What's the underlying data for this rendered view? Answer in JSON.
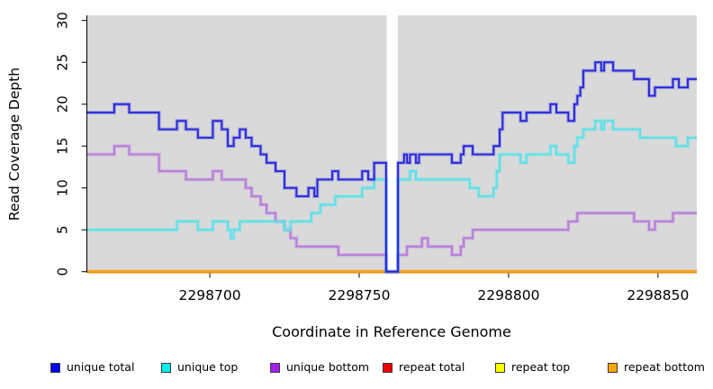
{
  "figure": {
    "y_axis": {
      "title": "Read Coverage Depth",
      "ticks": [
        0,
        5,
        10,
        15,
        20,
        25,
        30
      ]
    },
    "x_axis": {
      "title": "Coordinate in Reference Genome",
      "ticks": [
        2298700,
        2298750,
        2298800,
        2298850
      ]
    }
  },
  "chart_data": {
    "type": "line",
    "subtype": "step-coverage-plot",
    "title": "",
    "xlabel": "Coordinate in Reference Genome",
    "ylabel": "Read Coverage Depth",
    "xlim": [
      2298659,
      2298863
    ],
    "ylim": [
      0,
      30
    ],
    "x_ticks": [
      2298700,
      2298750,
      2298800,
      2298850
    ],
    "y_ticks": [
      0,
      5,
      10,
      15,
      20,
      25,
      30
    ],
    "grid": false,
    "panel_bg": "#d9d9d9",
    "no_data_gap": {
      "from": 2298759.2,
      "to": 2298762.9,
      "color": "#ffffff"
    },
    "legend_position": "bottom",
    "series": [
      {
        "name": "repeat total",
        "color": "#dd0000",
        "halo": "rgba(221,0,0,0.25)",
        "points": [
          [
            2298659,
            0
          ]
        ]
      },
      {
        "name": "repeat top",
        "color": "#f0f000",
        "halo": "rgba(240,240,0,0.25)",
        "points": [
          [
            2298659,
            0
          ]
        ]
      },
      {
        "name": "repeat bottom",
        "color": "#ff9f1a",
        "halo": "rgba(255,159,26,0.4)",
        "points": [
          [
            2298659,
            0
          ]
        ]
      },
      {
        "name": "unique bottom",
        "color": "#b878dc",
        "halo": "rgba(184,120,220,0.38)",
        "points": [
          [
            2298659,
            14
          ],
          [
            2298668,
            15
          ],
          [
            2298673,
            14
          ],
          [
            2298683,
            12
          ],
          [
            2298692,
            11
          ],
          [
            2298701,
            12
          ],
          [
            2298704,
            11
          ],
          [
            2298712,
            10
          ],
          [
            2298714,
            9
          ],
          [
            2298717,
            8
          ],
          [
            2298719,
            7
          ],
          [
            2298722,
            6
          ],
          [
            2298725,
            5
          ],
          [
            2298727,
            4
          ],
          [
            2298729,
            3
          ],
          [
            2298743,
            2
          ],
          [
            2298759,
            0
          ],
          [
            2298763,
            2
          ],
          [
            2298766,
            3
          ],
          [
            2298771,
            4
          ],
          [
            2298773,
            3
          ],
          [
            2298781,
            2
          ],
          [
            2298784,
            3
          ],
          [
            2298785,
            4
          ],
          [
            2298788,
            5
          ],
          [
            2298820,
            6
          ],
          [
            2298823,
            7
          ],
          [
            2298842,
            6
          ],
          [
            2298847,
            5
          ],
          [
            2298849,
            6
          ],
          [
            2298855,
            7
          ]
        ]
      },
      {
        "name": "unique top",
        "color": "#59e2ea",
        "halo": "rgba(89,226,234,0.42)",
        "points": [
          [
            2298659,
            5
          ],
          [
            2298689,
            6
          ],
          [
            2298696,
            5
          ],
          [
            2298701,
            6
          ],
          [
            2298706,
            5
          ],
          [
            2298707,
            4
          ],
          [
            2298708,
            5
          ],
          [
            2298710,
            6
          ],
          [
            2298725,
            5
          ],
          [
            2298727,
            6
          ],
          [
            2298734,
            7
          ],
          [
            2298737,
            8
          ],
          [
            2298742,
            9
          ],
          [
            2298751,
            10
          ],
          [
            2298755,
            11
          ],
          [
            2298759,
            0
          ],
          [
            2298763,
            11
          ],
          [
            2298767,
            12
          ],
          [
            2298769,
            11
          ],
          [
            2298787,
            10
          ],
          [
            2298790,
            9
          ],
          [
            2298795,
            10
          ],
          [
            2298796,
            12
          ],
          [
            2298797,
            14
          ],
          [
            2298804,
            13
          ],
          [
            2298806,
            14
          ],
          [
            2298814,
            15
          ],
          [
            2298816,
            14
          ],
          [
            2298820,
            13
          ],
          [
            2298822,
            15
          ],
          [
            2298823,
            16
          ],
          [
            2298825,
            17
          ],
          [
            2298829,
            18
          ],
          [
            2298831,
            17
          ],
          [
            2298832,
            18
          ],
          [
            2298835,
            17
          ],
          [
            2298844,
            16
          ],
          [
            2298856,
            15
          ],
          [
            2298860,
            16
          ]
        ]
      },
      {
        "name": "unique total",
        "color": "#2323dd",
        "halo": "rgba(70,70,221,0.38)",
        "points": [
          [
            2298659,
            19
          ],
          [
            2298668,
            20
          ],
          [
            2298673,
            19
          ],
          [
            2298683,
            17
          ],
          [
            2298689,
            18
          ],
          [
            2298692,
            17
          ],
          [
            2298696,
            16
          ],
          [
            2298701,
            18
          ],
          [
            2298704,
            17
          ],
          [
            2298706,
            15
          ],
          [
            2298708,
            16
          ],
          [
            2298710,
            17
          ],
          [
            2298712,
            16
          ],
          [
            2298714,
            15
          ],
          [
            2298717,
            14
          ],
          [
            2298719,
            13
          ],
          [
            2298722,
            12
          ],
          [
            2298725,
            10
          ],
          [
            2298729,
            9
          ],
          [
            2298733,
            10
          ],
          [
            2298735,
            9
          ],
          [
            2298736,
            11
          ],
          [
            2298741,
            12
          ],
          [
            2298743,
            11
          ],
          [
            2298751,
            12
          ],
          [
            2298753,
            11
          ],
          [
            2298755,
            13
          ],
          [
            2298759,
            0
          ],
          [
            2298763,
            13
          ],
          [
            2298765,
            14
          ],
          [
            2298766,
            13
          ],
          [
            2298767,
            14
          ],
          [
            2298769,
            13
          ],
          [
            2298770,
            14
          ],
          [
            2298781,
            13
          ],
          [
            2298784,
            14
          ],
          [
            2298785,
            15
          ],
          [
            2298788,
            14
          ],
          [
            2298795,
            15
          ],
          [
            2298797,
            17
          ],
          [
            2298798,
            19
          ],
          [
            2298804,
            18
          ],
          [
            2298806,
            19
          ],
          [
            2298814,
            20
          ],
          [
            2298816,
            19
          ],
          [
            2298820,
            18
          ],
          [
            2298822,
            20
          ],
          [
            2298823,
            21
          ],
          [
            2298824,
            22
          ],
          [
            2298825,
            24
          ],
          [
            2298829,
            25
          ],
          [
            2298831,
            24
          ],
          [
            2298832,
            25
          ],
          [
            2298835,
            24
          ],
          [
            2298842,
            23
          ],
          [
            2298847,
            21
          ],
          [
            2298849,
            22
          ],
          [
            2298855,
            23
          ],
          [
            2298857,
            22
          ],
          [
            2298860,
            23
          ]
        ]
      }
    ]
  },
  "legend": {
    "items": [
      {
        "label": "unique total",
        "swatch": "#0000ee"
      },
      {
        "label": "unique top",
        "swatch": "#00efef"
      },
      {
        "label": "unique bottom",
        "swatch": "#a020f0"
      },
      {
        "label": "repeat total",
        "swatch": "#ee0000"
      },
      {
        "label": "repeat top",
        "swatch": "#ffff00"
      },
      {
        "label": "repeat bottom",
        "swatch": "#ffa500"
      }
    ]
  }
}
